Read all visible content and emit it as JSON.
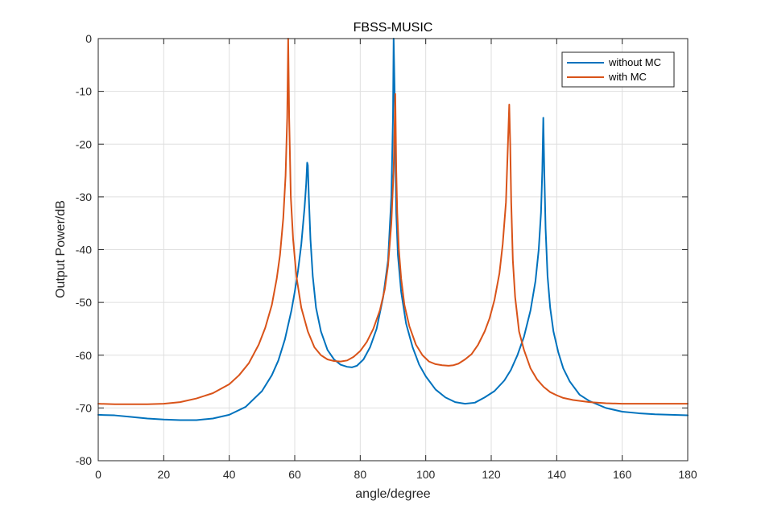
{
  "chart_data": {
    "type": "line",
    "title": "FBSS-MUSIC",
    "xlabel": "angle/degree",
    "ylabel": "Output Power/dB",
    "xlim": [
      0,
      180
    ],
    "ylim": [
      -80,
      0
    ],
    "xticks": [
      0,
      20,
      40,
      60,
      80,
      100,
      120,
      140,
      160,
      180
    ],
    "yticks": [
      0,
      -10,
      -20,
      -30,
      -40,
      -50,
      -60,
      -70,
      -80
    ],
    "grid": true,
    "legend_position": "top-right",
    "series": [
      {
        "name": "without MC",
        "color": "#0072BD",
        "x": [
          0,
          5,
          10,
          15,
          20,
          25,
          28,
          30,
          35,
          40,
          45,
          50,
          53,
          55,
          57,
          59,
          60,
          61,
          62,
          63,
          63.5,
          63.8,
          64,
          64.3,
          64.8,
          65.5,
          66.5,
          68,
          70,
          72,
          74,
          76,
          77.5,
          79,
          81,
          83,
          85,
          87,
          88.5,
          89.5,
          90,
          90.2,
          90.5,
          90.8,
          91,
          91.5,
          92.5,
          94,
          96,
          98,
          100,
          103,
          106,
          109,
          112,
          115,
          118,
          121,
          124,
          126,
          128,
          130,
          132,
          133.5,
          134.5,
          135.2,
          135.6,
          135.9,
          136.2,
          136.6,
          137.2,
          138,
          139,
          140.5,
          142,
          144,
          147,
          150,
          155,
          160,
          165,
          170,
          175,
          180
        ],
        "y": [
          -71.3,
          -71.4,
          -71.7,
          -72.0,
          -72.2,
          -72.3,
          -72.3,
          -72.3,
          -72.0,
          -71.3,
          -69.8,
          -66.8,
          -63.8,
          -61.0,
          -57.0,
          -51.5,
          -48.0,
          -44.0,
          -39.0,
          -32.0,
          -27.5,
          -23.5,
          -24.0,
          -30.0,
          -38.0,
          -45.0,
          -51.0,
          -55.5,
          -59.0,
          -60.8,
          -61.8,
          -62.2,
          -62.3,
          -62.0,
          -60.8,
          -58.5,
          -55.0,
          -49.0,
          -42.0,
          -30.0,
          -15.0,
          0.0,
          -10.0,
          -25.0,
          -33.0,
          -41.0,
          -48.0,
          -54.0,
          -58.5,
          -61.8,
          -64.0,
          -66.5,
          -68.0,
          -68.9,
          -69.2,
          -69.0,
          -68.0,
          -66.8,
          -64.8,
          -62.8,
          -60.0,
          -56.5,
          -51.5,
          -46.0,
          -40.0,
          -33.0,
          -25.0,
          -15.0,
          -25.0,
          -36.0,
          -45.0,
          -51.0,
          -55.5,
          -59.5,
          -62.5,
          -65.0,
          -67.5,
          -68.7,
          -70.0,
          -70.7,
          -71.0,
          -71.2,
          -71.3,
          -71.4
        ]
      },
      {
        "name": "with MC",
        "color": "#D95319",
        "x": [
          0,
          5,
          10,
          15,
          20,
          25,
          30,
          35,
          40,
          43,
          46,
          49,
          51,
          53,
          54.5,
          55.5,
          56.5,
          57.2,
          57.7,
          58,
          58.3,
          58.8,
          59.5,
          60.5,
          62,
          64,
          66,
          68,
          70,
          72,
          74,
          76,
          78,
          80,
          82,
          84,
          86,
          87.5,
          88.5,
          89.5,
          90.2,
          90.7,
          91,
          91.3,
          91.8,
          92.5,
          93.5,
          95,
          97,
          99,
          101,
          103,
          105,
          107,
          108.5,
          110,
          112,
          114,
          116,
          118,
          119.5,
          121,
          122.5,
          123.5,
          124.5,
          125.1,
          125.5,
          125.8,
          126.1,
          126.6,
          127.3,
          128.5,
          130,
          132,
          134,
          136,
          138,
          140,
          142,
          145,
          150,
          155,
          160,
          165,
          170,
          175,
          180
        ],
        "y": [
          -69.2,
          -69.3,
          -69.3,
          -69.3,
          -69.2,
          -68.9,
          -68.2,
          -67.2,
          -65.5,
          -63.8,
          -61.5,
          -58.0,
          -54.8,
          -50.5,
          -45.5,
          -41.0,
          -34.0,
          -26.0,
          -15.0,
          0.0,
          -15.0,
          -30.0,
          -38.0,
          -45.0,
          -51.0,
          -55.5,
          -58.5,
          -60.0,
          -60.8,
          -61.1,
          -61.2,
          -61.0,
          -60.3,
          -59.2,
          -57.5,
          -55.0,
          -51.5,
          -47.5,
          -43.0,
          -35.0,
          -25.0,
          -10.5,
          -25.0,
          -33.0,
          -40.0,
          -45.5,
          -50.5,
          -54.5,
          -58.0,
          -60.0,
          -61.2,
          -61.7,
          -61.9,
          -62.0,
          -61.9,
          -61.6,
          -60.8,
          -59.8,
          -58.0,
          -55.5,
          -53.0,
          -49.5,
          -44.5,
          -39.0,
          -31.0,
          -20.0,
          -12.5,
          -20.0,
          -31.0,
          -42.0,
          -49.0,
          -55.5,
          -59.0,
          -62.5,
          -64.6,
          -66.0,
          -67.0,
          -67.6,
          -68.1,
          -68.5,
          -68.9,
          -69.1,
          -69.2,
          -69.2,
          -69.2,
          -69.2,
          -69.2
        ]
      }
    ]
  }
}
